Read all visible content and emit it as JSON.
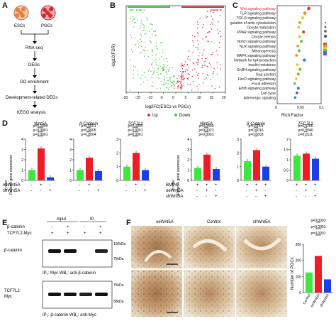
{
  "panels": {
    "A": "A",
    "B": "B",
    "C": "C",
    "D": "D",
    "E": "E",
    "F": "F"
  },
  "panelA": {
    "cell_labels": [
      "ESCs",
      "PGCs"
    ],
    "steps": [
      "RNA-seq",
      "DEGs",
      "GO enrichment",
      "Development-related DEGs",
      "KEGG analysis"
    ]
  },
  "panelB": {
    "ylabel": "-log10(FDR)",
    "xlabel": "log2FC(ESCs vs PGCs)",
    "xticks": [
      "-20",
      "-15",
      "-10",
      "-5",
      "0",
      "5",
      "10",
      "15",
      "20"
    ],
    "legend": [
      {
        "label": "Up",
        "color": "#e32636"
      },
      {
        "label": "Down",
        "color": "#3cc83c"
      }
    ],
    "chart_data": {
      "type": "scatter",
      "xlabel": "log2FC(ESCs vs PGCs)",
      "ylabel": "-log10(FDR)",
      "xlim": [
        -20,
        20
      ],
      "series": [
        {
          "name": "Up"
        },
        {
          "name": "Down"
        }
      ]
    }
  },
  "panelC": {
    "pathways": [
      "Wnt signaling pathway",
      "TLR signaling pathway",
      "TGF-β signaling pathway",
      "Regulation of actin cytoskeleton",
      "Oocyte maturation",
      "PPAR signaling pathway",
      "Oocyte meiosis",
      "Notch signaling pathway",
      "NLR signaling pathway",
      "Melanogenesis",
      "MAPK signaling pathway",
      "Network for IgA production",
      "Insulin resistance",
      "GnRH signaling pathway",
      "Gap junction",
      "FoxO signaling pathway",
      "Focal adhesion",
      "ErbB signaling pathway",
      "Cell cycle",
      "Adrenergic signaling"
    ],
    "xticks": [
      "0",
      "0.05",
      "0.1"
    ],
    "xlabel": "Rich Factor",
    "chart_data": {
      "type": "scatter",
      "xlabel": "Rich Factor",
      "xlim": [
        0,
        0.1
      ],
      "categories": [
        "Wnt signaling pathway",
        "TLR signaling pathway",
        "TGF-β signaling pathway",
        "Regulation of actin cytoskeleton",
        "Oocyte maturation",
        "PPAR signaling pathway",
        "Oocyte meiosis",
        "Notch signaling pathway",
        "NLR signaling pathway",
        "Melanogenesis",
        "MAPK signaling pathway",
        "Network for IgA production",
        "Insulin resistance",
        "GnRH signaling pathway",
        "Gap junction",
        "FoxO signaling pathway",
        "Focal adhesion",
        "ErbB signaling pathway",
        "Cell cycle",
        "Adrenergic signaling"
      ],
      "values": [
        0.072,
        0.063,
        0.058,
        0.052,
        0.049,
        0.06,
        0.051,
        0.055,
        0.047,
        0.05,
        0.044,
        0.062,
        0.046,
        0.052,
        0.048,
        0.043,
        0.04,
        0.048,
        0.045,
        0.041
      ]
    }
  },
  "panelD": {
    "ylabel_left": "in vivo\nRelative gene expression",
    "ylabel_right": "in vitro\nRelative gene expression",
    "row_oe": "oeWnt5A",
    "row_sh": "shWnt5A",
    "row_bmp": "BMP4",
    "signs": [
      "+",
      "-",
      "-",
      "+",
      "+",
      "+",
      "-",
      "+",
      "-",
      "-",
      "-",
      "+"
    ],
    "charts": [
      {
        "title": "Wnt5A",
        "ymax": 4,
        "yticks": [
          "0",
          "1",
          "2",
          "3",
          "4"
        ],
        "values": [
          1.0,
          3.1,
          0.3
        ],
        "pvals": [
          "p=0.0004",
          "p<0.0001",
          "p=0.0001"
        ],
        "stars": [
          "****",
          "****",
          "****"
        ]
      },
      {
        "title": "β-Catenin",
        "ymax": 4,
        "yticks": [
          "0",
          "1",
          "2",
          "3",
          "4"
        ],
        "values": [
          1.0,
          2.2,
          0.9
        ],
        "pvals": [
          "p=0.0001",
          "p=0.0005",
          "p=0.0004"
        ],
        "stars": [
          "***",
          "***",
          "**"
        ]
      },
      {
        "title": "TCF7L2",
        "ymax": 3,
        "yticks": [
          "0",
          "1",
          "2",
          "3"
        ],
        "values": [
          1.0,
          2.0,
          0.75
        ],
        "pvals": [
          "p=0.0004",
          "p<0.0001",
          "p=0.0001"
        ],
        "stars": [
          "****",
          "****",
          "****"
        ]
      },
      {
        "title": "Wnt5A",
        "ymax": 4,
        "yticks": [
          "0",
          "1",
          "2",
          "3",
          "4"
        ],
        "values": [
          1.2,
          2.5,
          1.1
        ],
        "pvals": [
          "p=0.0400",
          "p=0.0023",
          "p=0.0001"
        ],
        "stars": [
          "***",
          "***",
          "*"
        ]
      },
      {
        "title": "β-Catenin",
        "ymax": 3,
        "yticks": [
          "0",
          "1",
          "2",
          "3"
        ],
        "values": [
          1.4,
          2.2,
          1.0
        ],
        "pvals": [
          "p=0.0001",
          "p=0.0016",
          "p=0.0003"
        ],
        "stars": [
          "***",
          "*",
          "**"
        ]
      },
      {
        "title": "TFC7L2",
        "ymax": 2,
        "yticks": [
          "0",
          "0.5",
          "1",
          "1.5",
          "2"
        ],
        "values": [
          1.2,
          1.3,
          1.05
        ],
        "pvals": [
          "p=0.0206",
          "p=0.0040",
          "p=0.0111"
        ],
        "stars": [
          "**",
          "**",
          "*"
        ]
      }
    ],
    "colors": {
      "control": "#3ee63e",
      "oe": "#ee1c24",
      "sh": "#1c3ee6"
    }
  },
  "panelE": {
    "row1": "β-catenin",
    "row2": "TCF7L2-Myc",
    "input": "input",
    "ip": "IP",
    "signs_row1": [
      "-",
      "+",
      "-",
      "+"
    ],
    "signs_row2": [
      "+",
      "+",
      "+",
      "+"
    ],
    "blot1_label": "β-catenin",
    "blot1_kda": "100kDa",
    "blot1_kda2": "75kDa",
    "blot1_caption": "IP₁: Myc    WB₁: anti-β-catenin",
    "blot2_label": "TCF7L2-\nMyc",
    "blot2_kda": "75kDa",
    "blot2_kda2": "58kDa",
    "blot2_caption": "IP₂: β-catenin   WB₂: anti-Myc"
  },
  "panelF": {
    "col_labels": [
      "oeWnt5A",
      "Control",
      "shWnt5A"
    ],
    "chart": {
      "title": "",
      "ylabel": "Number of PGCs",
      "yticks": [
        "0",
        "100",
        "200",
        "300"
      ],
      "ymax": 300,
      "categories": [
        "Control",
        "oeWnt5A",
        "shWnt5A"
      ],
      "values": [
        125,
        228,
        82
      ],
      "pvals": [
        "p=0.0003",
        "p=0.0001",
        "p=0.0001"
      ],
      "stars": [
        "***",
        "****",
        "****"
      ]
    },
    "chart_data": {
      "type": "bar",
      "ylabel": "Number of PGCs",
      "ylim": [
        0,
        300
      ],
      "categories": [
        "Control",
        "oeWnt5A",
        "shWnt5A"
      ],
      "values": [
        125,
        228,
        82
      ]
    }
  }
}
